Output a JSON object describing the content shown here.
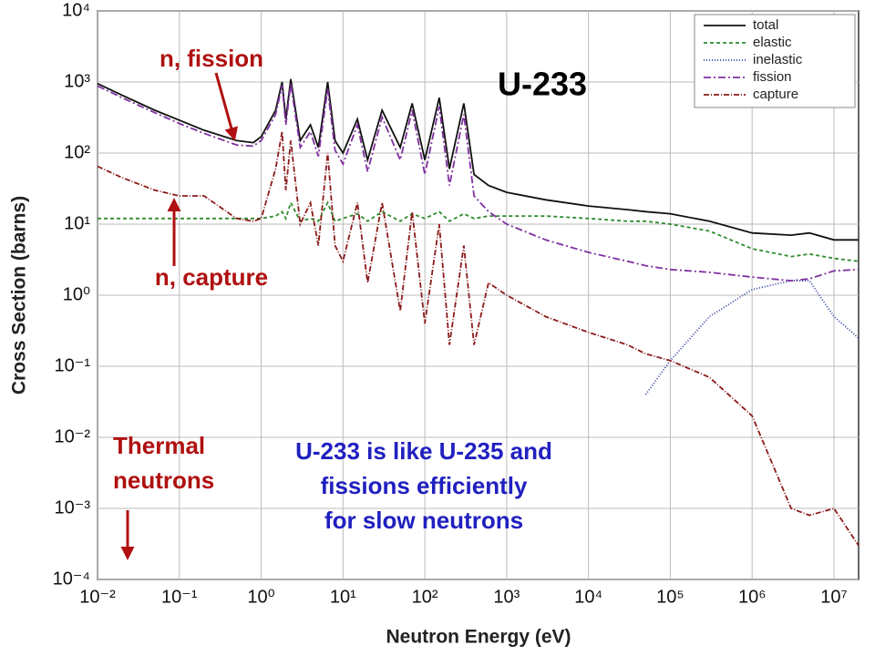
{
  "chart_data": {
    "type": "line",
    "title": "U-233",
    "xlabel": "Neutron Energy (eV)",
    "ylabel": "Cross Section (barns)",
    "log_x": true,
    "log_y": true,
    "grid": true,
    "legend": "top-right",
    "xlim": [
      0.01,
      20000000
    ],
    "ylim": [
      0.0001,
      10000
    ],
    "xticks": [
      {
        "value": 0.01,
        "label": "10⁻²"
      },
      {
        "value": 0.1,
        "label": "10⁻¹"
      },
      {
        "value": 1,
        "label": "10⁰"
      },
      {
        "value": 10,
        "label": "10¹"
      },
      {
        "value": 100,
        "label": "10²"
      },
      {
        "value": 1000,
        "label": "10³"
      },
      {
        "value": 10000,
        "label": "10⁴"
      },
      {
        "value": 100000,
        "label": "10⁵"
      },
      {
        "value": 1000000,
        "label": "10⁶"
      },
      {
        "value": 10000000,
        "label": "10⁷"
      }
    ],
    "yticks": [
      {
        "value": 0.0001,
        "label": "10⁻⁴"
      },
      {
        "value": 0.001,
        "label": "10⁻³"
      },
      {
        "value": 0.01,
        "label": "10⁻²"
      },
      {
        "value": 0.1,
        "label": "10⁻¹"
      },
      {
        "value": 1,
        "label": "10⁰"
      },
      {
        "value": 10,
        "label": "10¹"
      },
      {
        "value": 100,
        "label": "10²"
      },
      {
        "value": 1000,
        "label": "10³"
      },
      {
        "value": 10000,
        "label": "10⁴"
      }
    ],
    "x": [
      0.01,
      0.02,
      0.05,
      0.1,
      0.2,
      0.5,
      0.8,
      1,
      1.5,
      1.8,
      2,
      2.3,
      3,
      4,
      5,
      6.5,
      8,
      10,
      15,
      20,
      30,
      50,
      70,
      100,
      150,
      200,
      300,
      400,
      600,
      1000,
      3000,
      10000,
      30000,
      50000,
      100000,
      300000,
      1000000,
      3000000,
      5000000,
      10000000,
      20000000
    ],
    "series": [
      {
        "name": "total",
        "color": "#111111",
        "dash": "none",
        "values": [
          950,
          650,
          400,
          290,
          210,
          150,
          140,
          170,
          400,
          1000,
          300,
          1100,
          150,
          250,
          120,
          1000,
          150,
          100,
          300,
          80,
          400,
          120,
          500,
          80,
          600,
          60,
          500,
          50,
          35,
          28,
          22,
          18,
          16,
          15,
          14,
          11,
          7.5,
          7,
          7.5,
          6,
          6
        ]
      },
      {
        "name": "elastic",
        "color": "#2e8b2e",
        "dash": "4,3",
        "values": [
          12,
          12,
          12,
          12,
          12,
          12,
          12,
          12,
          13,
          15,
          12,
          20,
          11,
          12,
          11,
          20,
          11,
          12,
          14,
          11,
          15,
          11,
          14,
          12,
          15,
          11,
          14,
          12,
          13,
          13,
          13,
          12,
          11,
          11,
          10,
          8,
          4.5,
          3.5,
          3.8,
          3.3,
          3
        ]
      },
      {
        "name": "inelastic",
        "color": "#3040a0",
        "dash": "1,2",
        "values": [
          null,
          null,
          null,
          null,
          null,
          null,
          null,
          null,
          null,
          null,
          null,
          null,
          null,
          null,
          null,
          null,
          null,
          null,
          null,
          null,
          null,
          null,
          null,
          null,
          null,
          null,
          null,
          null,
          null,
          null,
          null,
          null,
          null,
          0.04,
          0.12,
          0.5,
          1.2,
          1.6,
          1.6,
          0.5,
          0.25
        ]
      },
      {
        "name": "fission",
        "color": "#8030a0",
        "dash": "8,3,2,3",
        "values": [
          880,
          600,
          370,
          260,
          190,
          130,
          125,
          150,
          350,
          900,
          250,
          950,
          120,
          200,
          90,
          800,
          110,
          70,
          250,
          55,
          320,
          80,
          400,
          50,
          450,
          35,
          350,
          25,
          15,
          10,
          6,
          4,
          3,
          2.6,
          2.3,
          2.1,
          1.8,
          1.6,
          1.7,
          2.2,
          2.3
        ]
      },
      {
        "name": "capture",
        "color": "#8b1a1a",
        "dash": "6,2,1,2",
        "values": [
          65,
          45,
          30,
          25,
          25,
          12,
          11,
          12,
          60,
          200,
          30,
          150,
          10,
          20,
          5,
          100,
          5,
          3,
          20,
          1.5,
          20,
          0.6,
          15,
          0.4,
          10,
          0.2,
          5,
          0.2,
          1.5,
          1,
          0.5,
          0.3,
          0.2,
          0.15,
          0.12,
          0.07,
          0.02,
          0.001,
          0.0008,
          0.001,
          0.0003
        ]
      }
    ],
    "annotations": [
      [
        "n, fission"
      ],
      [
        "n, capture"
      ],
      [
        "Thermal",
        "neutrons"
      ],
      [
        "U-233 is like U-235 and",
        "fissions efficiently",
        "for slow neutrons"
      ]
    ]
  }
}
